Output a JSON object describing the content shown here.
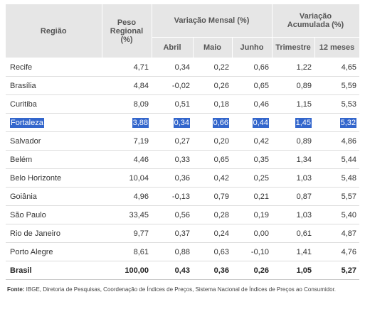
{
  "headers": {
    "regiao": "Região",
    "peso": "Peso Regional (%)",
    "variacao_mensal": "Variação Mensal (%)",
    "variacao_acumulada": "Variação Acumulada (%)",
    "abril": "Abril",
    "maio": "Maio",
    "junho": "Junho",
    "trimestre": "Trimestre",
    "doze_meses": "12 meses"
  },
  "rows": [
    {
      "regiao": "Recife",
      "peso": "4,71",
      "abril": "0,34",
      "maio": "0,22",
      "junho": "0,66",
      "trimestre": "1,22",
      "doze_meses": "4,65"
    },
    {
      "regiao": "Brasília",
      "peso": "4,84",
      "abril": "-0,02",
      "maio": "0,26",
      "junho": "0,65",
      "trimestre": "0,89",
      "doze_meses": "5,59"
    },
    {
      "regiao": "Curitiba",
      "peso": "8,09",
      "abril": "0,51",
      "maio": "0,18",
      "junho": "0,46",
      "trimestre": "1,15",
      "doze_meses": "5,53"
    },
    {
      "regiao": "Fortaleza",
      "peso": "3,88",
      "abril": "0,34",
      "maio": "0,66",
      "junho": "0,44",
      "trimestre": "1,45",
      "doze_meses": "5,32"
    },
    {
      "regiao": "Salvador",
      "peso": "7,19",
      "abril": "0,27",
      "maio": "0,20",
      "junho": "0,42",
      "trimestre": "0,89",
      "doze_meses": "4,86"
    },
    {
      "regiao": "Belém",
      "peso": "4,46",
      "abril": "0,33",
      "maio": "0,65",
      "junho": "0,35",
      "trimestre": "1,34",
      "doze_meses": "5,44"
    },
    {
      "regiao": "Belo Horizonte",
      "peso": "10,04",
      "abril": "0,36",
      "maio": "0,42",
      "junho": "0,25",
      "trimestre": "1,03",
      "doze_meses": "5,48"
    },
    {
      "regiao": "Goiânia",
      "peso": "4,96",
      "abril": "-0,13",
      "maio": "0,79",
      "junho": "0,21",
      "trimestre": "0,87",
      "doze_meses": "5,57"
    },
    {
      "regiao": "São Paulo",
      "peso": "33,45",
      "abril": "0,56",
      "maio": "0,28",
      "junho": "0,19",
      "trimestre": "1,03",
      "doze_meses": "5,40"
    },
    {
      "regiao": "Rio de Janeiro",
      "peso": "9,77",
      "abril": "0,37",
      "maio": "0,24",
      "junho": "0,00",
      "trimestre": "0,61",
      "doze_meses": "4,87"
    },
    {
      "regiao": "Porto Alegre",
      "peso": "8,61",
      "abril": "0,88",
      "maio": "0,63",
      "junho": "-0,10",
      "trimestre": "1,41",
      "doze_meses": "4,76"
    }
  ],
  "total": {
    "regiao": "Brasil",
    "peso": "100,00",
    "abril": "0,43",
    "maio": "0,36",
    "junho": "0,26",
    "trimestre": "1,05",
    "doze_meses": "5,27"
  },
  "selected_row_index": 3,
  "selection_color": "#3366cc",
  "source": {
    "label": "Fonte:",
    "text": "IBGE, Diretoria de Pesquisas, Coordenação de Índices de Preços, Sistema Nacional de Índices de Preços ao Consumidor."
  }
}
